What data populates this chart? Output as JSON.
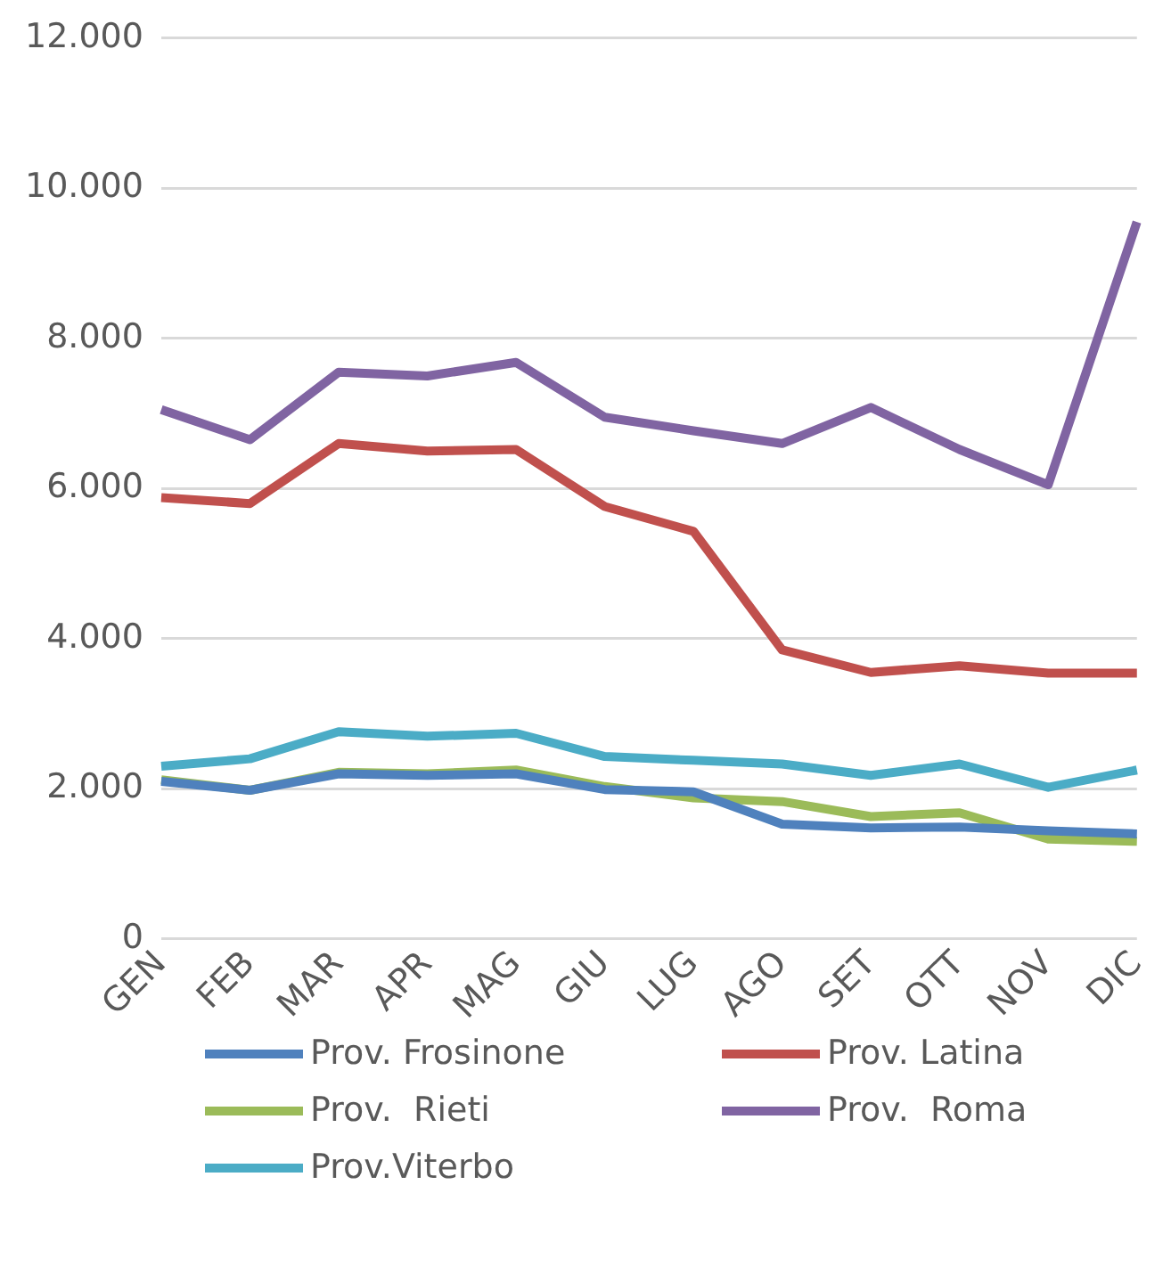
{
  "chart_data": {
    "type": "line",
    "categories": [
      "GEN",
      "FEB",
      "MAR",
      "APR",
      "MAG",
      "GIU",
      "LUG",
      "AGO",
      "SET",
      "OTT",
      "NOV",
      "DIC"
    ],
    "series": [
      {
        "name": "Prov. Frosinone",
        "color": "#4f81bd",
        "values": [
          2100,
          1980,
          2200,
          2180,
          2200,
          1990,
          1960,
          1530,
          1480,
          1490,
          1440,
          1400
        ]
      },
      {
        "name": "Prov. Latina",
        "color": "#c0504d",
        "values": [
          5880,
          5800,
          6600,
          6500,
          6520,
          5760,
          5430,
          3850,
          3550,
          3640,
          3540,
          3540
        ]
      },
      {
        "name": "Prov.  Rieti",
        "color": "#9bbb59",
        "values": [
          2120,
          1980,
          2220,
          2200,
          2250,
          2030,
          1880,
          1830,
          1630,
          1680,
          1330,
          1300
        ]
      },
      {
        "name": "Prov.  Roma",
        "color": "#8064a2",
        "values": [
          7050,
          6650,
          7550,
          7500,
          7680,
          6950,
          6770,
          6600,
          7080,
          6520,
          6050,
          9550
        ]
      },
      {
        "name": "Prov.Viterbo",
        "color": "#4bacc6",
        "values": [
          2300,
          2400,
          2760,
          2700,
          2740,
          2430,
          2380,
          2330,
          2180,
          2330,
          2020,
          2250
        ]
      }
    ],
    "ylim": [
      0,
      12000
    ],
    "yticks": [
      0,
      {
        "value": 2000,
        "label": "2.000"
      },
      {
        "value": 4000,
        "label": "4.000"
      },
      {
        "value": 6000,
        "label": "6.000"
      },
      {
        "value": 8000,
        "label": "8.000"
      },
      {
        "value": 10000,
        "label": "10.000"
      },
      {
        "value": 12000,
        "label": "12.000"
      }
    ],
    "grid": "y",
    "legend": "bottom",
    "marker": "none",
    "line_style": "solid"
  }
}
